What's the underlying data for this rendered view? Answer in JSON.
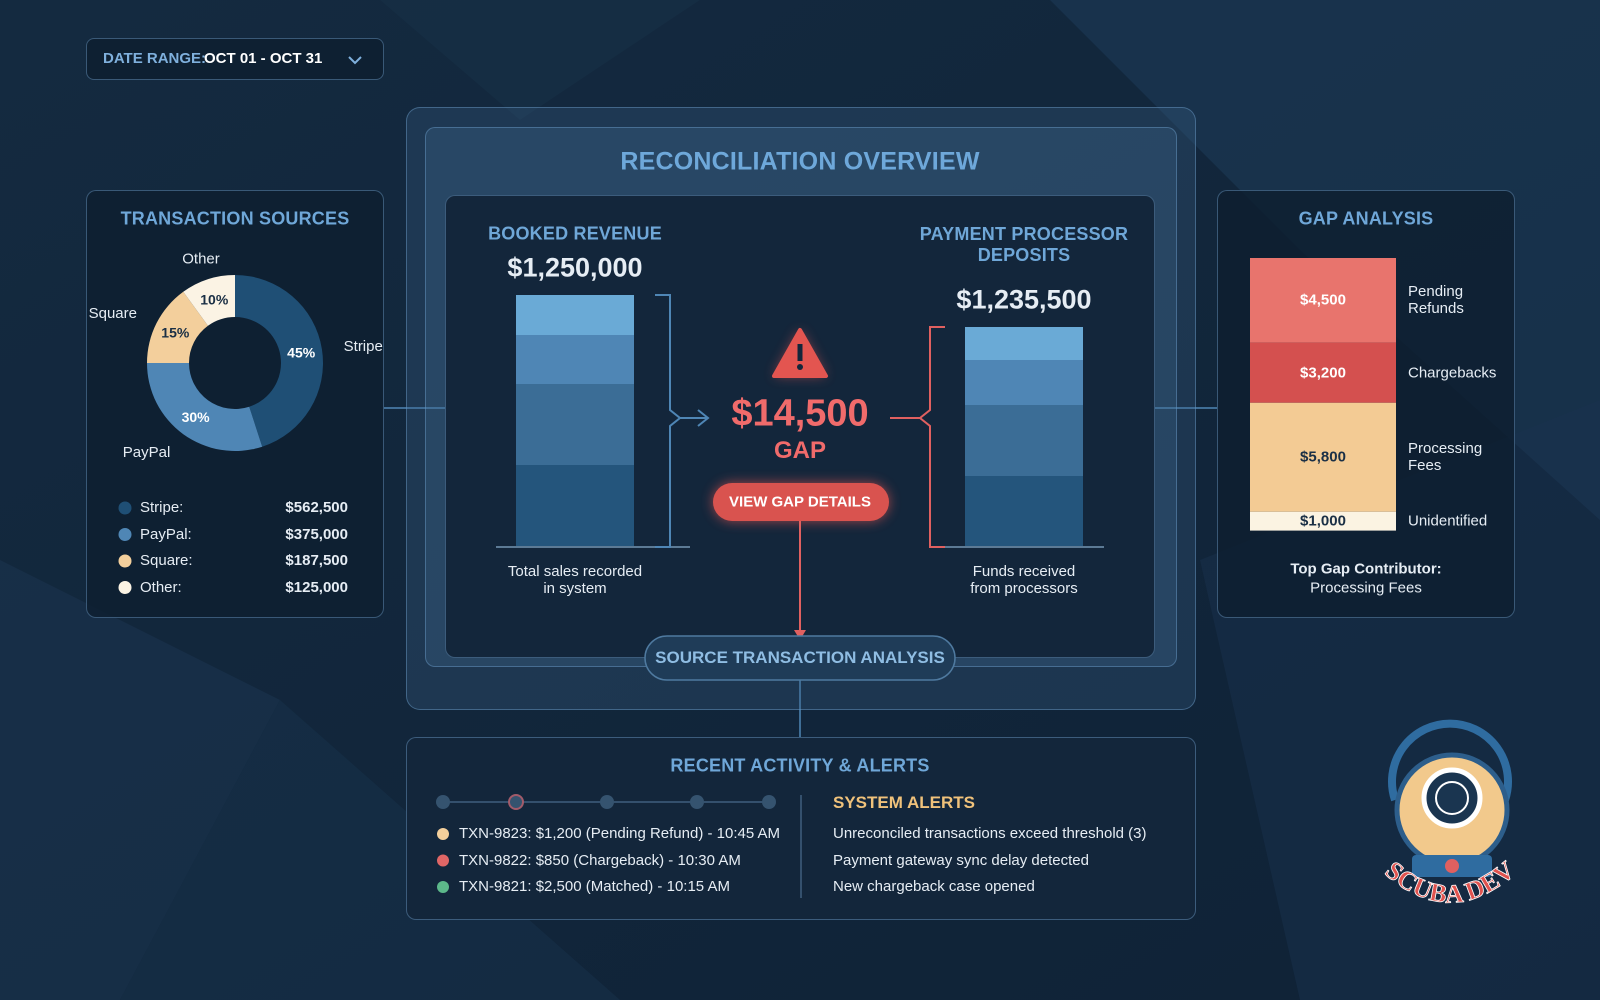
{
  "date_range": {
    "label": "DATE RANGE:",
    "value": "OCT 01 - OCT 31"
  },
  "transaction_sources": {
    "title": "TRANSACTION SOURCES",
    "chart": {
      "type": "pie",
      "categories": [
        "Stripe",
        "PayPal",
        "Square",
        "Other"
      ],
      "values": [
        45,
        30,
        15,
        10
      ],
      "value_labels": [
        "45%",
        "30%",
        "15%",
        "10%"
      ],
      "colors": [
        "#1f4f75",
        "#4f86b5",
        "#f3cf9c",
        "#fbf3e4"
      ]
    },
    "legend": [
      {
        "name": "Stripe:",
        "amount": "$562,500"
      },
      {
        "name": "PayPal:",
        "amount": "$375,000"
      },
      {
        "name": "Square:",
        "amount": "$187,500"
      },
      {
        "name": "Other:",
        "amount": "$125,000"
      }
    ]
  },
  "reconciliation": {
    "title": "RECONCILIATION OVERVIEW",
    "booked": {
      "label": "BOOKED REVENUE",
      "amount": "$1,250,000",
      "caption": "Total sales recorded in system"
    },
    "gap": {
      "amount": "$14,500",
      "label": "GAP",
      "button": "VIEW GAP DETAILS"
    },
    "deposits": {
      "label": "PAYMENT PROCESSOR DEPOSITS",
      "amount": "$1,235,500",
      "caption": "Funds received from processors"
    },
    "source_button": "SOURCE TRANSACTION ANALYSIS"
  },
  "gap_analysis": {
    "title": "GAP ANALYSIS",
    "chart": {
      "type": "bar",
      "series": [
        {
          "name": "Pending Refunds",
          "color": "#e8746d",
          "values": [
            4500
          ],
          "value_labels": [
            "$4,500"
          ]
        },
        {
          "name": "Chargebacks",
          "color": "#d4504f",
          "values": [
            3200
          ],
          "value_labels": [
            "$3,200"
          ]
        },
        {
          "name": "Processing Fees",
          "color": "#f3cb94",
          "values": [
            5800
          ],
          "value_labels": [
            "$5,800"
          ]
        },
        {
          "name": "Unidentified",
          "color": "#fbf3e2",
          "values": [
            1000
          ],
          "value_labels": [
            "$1,000"
          ]
        }
      ]
    },
    "footer": {
      "label": "Top Gap Contributor:",
      "value": "Processing Fees"
    }
  },
  "recent_activity": {
    "title": "RECENT ACTIVITY & ALERTS",
    "transactions": [
      {
        "color": "#f3cf9c",
        "text": "TXN-9823: $1,200 (Pending Refund) - 10:45 AM"
      },
      {
        "color": "#e06666",
        "text": "TXN-9822: $850 (Chargeback) - 10:30 AM"
      },
      {
        "color": "#5cb88a",
        "text": "TXN-9821: $2,500 (Matched) - 10:15 AM"
      }
    ],
    "alerts_title": "SYSTEM ALERTS",
    "alerts": [
      "Unreconciled transactions exceed threshold (3)",
      "Payment gateway sync delay detected",
      "New chargeback case opened"
    ]
  },
  "logo": {
    "text": "SCUBA DEV"
  }
}
